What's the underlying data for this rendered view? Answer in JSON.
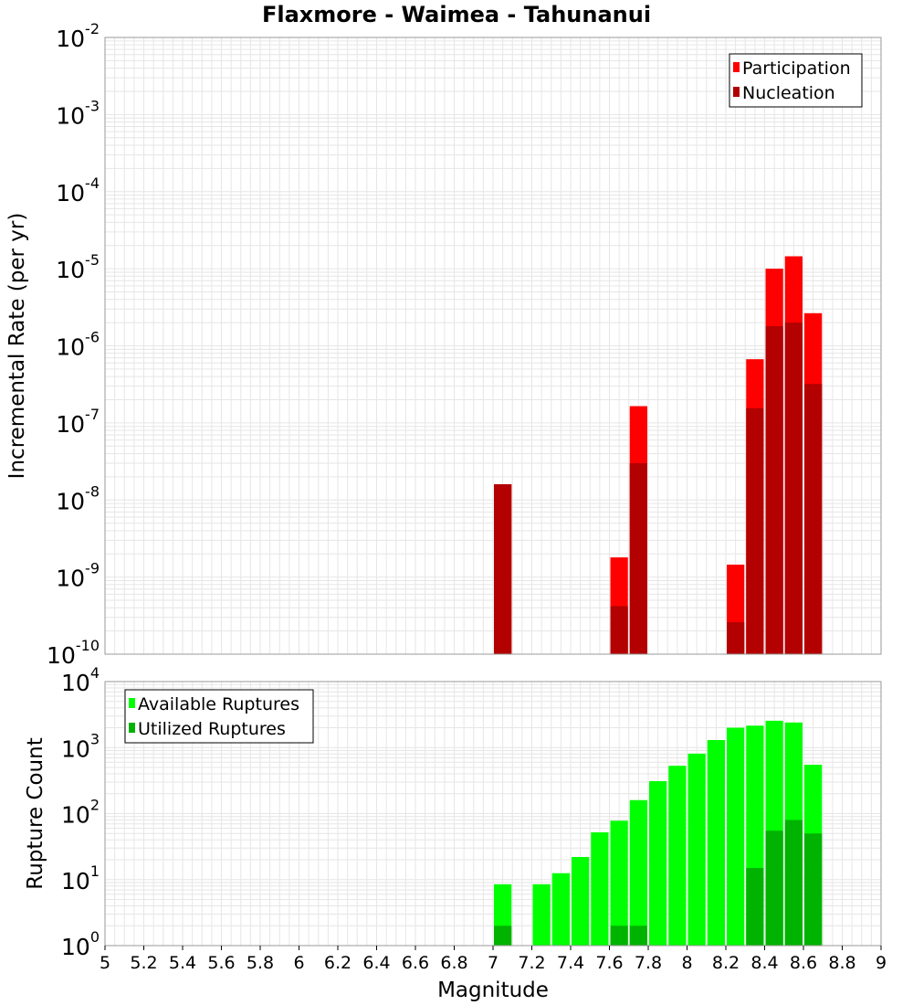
{
  "title": "Flaxmore - Waimea - Tahunanui",
  "chart_data": [
    {
      "type": "bar",
      "ylabel": "Incremental Rate (per yr)",
      "y_scale": "log",
      "ylim_exp": [
        -10,
        -2
      ],
      "xlim": [
        5,
        9
      ],
      "bin_width": 0.1,
      "grid": true,
      "legend_position": "top-right",
      "series": [
        {
          "name": "Participation",
          "color": "#ff0000",
          "x": [
            7.05,
            7.65,
            7.75,
            8.25,
            8.35,
            8.45,
            8.55,
            8.65
          ],
          "values": [
            1.6e-08,
            1.8e-09,
            1.65e-07,
            1.45e-09,
            6.7e-07,
            1e-05,
            1.45e-05,
            2.65e-06
          ]
        },
        {
          "name": "Nucleation",
          "color": "#b30000",
          "x": [
            7.05,
            7.65,
            7.75,
            8.25,
            8.35,
            8.45,
            8.55,
            8.65
          ],
          "values": [
            1.6e-08,
            4.2e-10,
            3e-08,
            2.6e-10,
            1.55e-07,
            1.8e-06,
            2e-06,
            3.2e-07
          ]
        }
      ]
    },
    {
      "type": "bar",
      "ylabel": "Rupture Count",
      "xlabel": "Magnitude",
      "y_scale": "log",
      "ylim_exp": [
        0,
        4
      ],
      "xlim": [
        5,
        9
      ],
      "bin_width": 0.1,
      "x_ticks": [
        "5",
        "5.2",
        "5.4",
        "5.6",
        "5.8",
        "6",
        "6.2",
        "6.4",
        "6.6",
        "6.8",
        "7",
        "7.2",
        "7.4",
        "7.6",
        "7.8",
        "8",
        "8.2",
        "8.4",
        "8.6",
        "8.8",
        "9"
      ],
      "grid": true,
      "legend_position": "top-left",
      "series": [
        {
          "name": "Available Ruptures",
          "color": "#00ff00",
          "x": [
            7.05,
            7.25,
            7.35,
            7.45,
            7.55,
            7.65,
            7.75,
            7.85,
            7.95,
            8.05,
            8.15,
            8.25,
            8.35,
            8.45,
            8.55,
            8.65
          ],
          "values": [
            8.5,
            8.5,
            12.5,
            22,
            52,
            78,
            160,
            310,
            530,
            810,
            1300,
            2000,
            2150,
            2550,
            2400,
            550
          ]
        },
        {
          "name": "Utilized Ruptures",
          "color": "#00b300",
          "x": [
            7.05,
            7.65,
            7.75,
            8.15,
            8.25,
            8.35,
            8.45,
            8.55,
            8.65
          ],
          "values": [
            2,
            2,
            2,
            1,
            1,
            15,
            55,
            80,
            50
          ]
        }
      ]
    }
  ]
}
